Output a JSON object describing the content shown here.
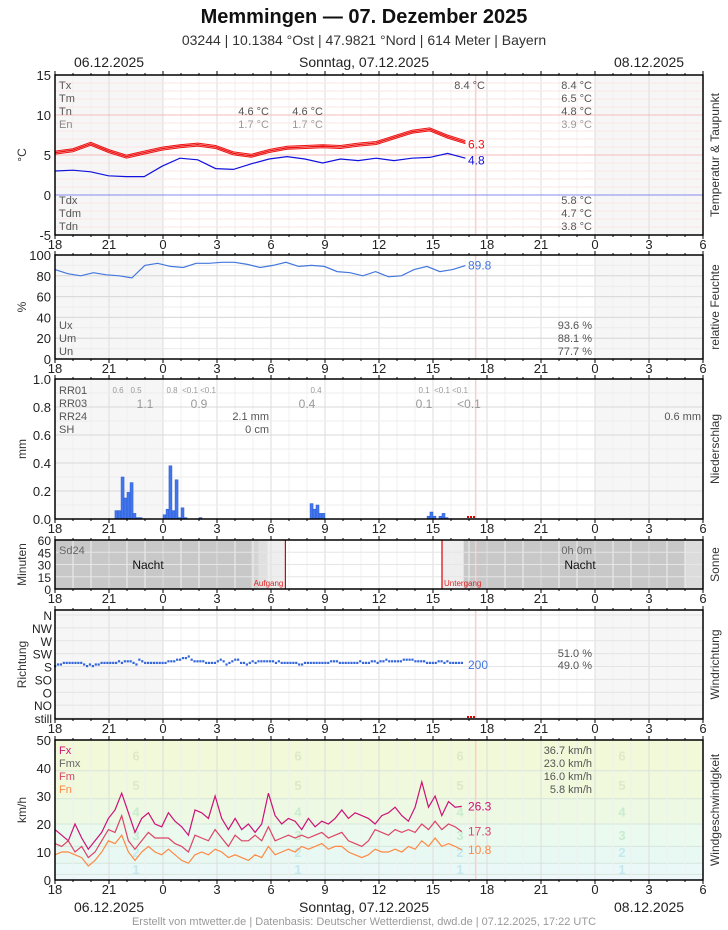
{
  "header": {
    "title": "Memmingen  —  07. Dezember 2025",
    "subtitle": "03244  |  10.1384 °Ost  |  47.9821 °Nord  |  614 Meter  |  Bayern",
    "date_left": "06.12.2025",
    "date_center": "Sonntag, 07.12.2025",
    "date_right": "08.12.2025"
  },
  "footer": {
    "text": "Erstellt von mtwetter.de | Datenbasis: Deutscher Wetterdienst, dwd.de | 07.12.2025, 17:22 UTC"
  },
  "time_axis": {
    "ticks": [
      "18",
      "21",
      "0",
      "3",
      "6",
      "9",
      "12",
      "15",
      "18",
      "21",
      "0",
      "3",
      "6"
    ]
  },
  "colors": {
    "temp": "#ee1111",
    "dew": "#1111dd",
    "humidity": "#4477dd",
    "precip": "#4477ee",
    "wind_fx": "#cc1177",
    "wind_fm": "#dd4466",
    "wind_fn": "#ff8844",
    "sun_marker": "#dd0000",
    "now_marker": "#ffcccc"
  },
  "chart_data": [
    {
      "id": "temperature",
      "type": "line",
      "title": "Temperatur & Taupunkt",
      "ylabel": "°C",
      "ylim": [
        -5,
        15
      ],
      "yticks": [
        "15",
        "10",
        "5",
        "0",
        "-5"
      ],
      "x_hours": [
        0,
        1,
        2,
        3,
        4,
        5,
        6,
        7,
        8,
        9,
        10,
        11,
        12,
        13,
        14,
        15,
        16,
        17,
        18,
        19,
        20,
        21,
        22,
        23
      ],
      "x_note": "hours since 18:00 on 06.12.2025",
      "series": [
        {
          "name": "Temperatur",
          "values": [
            5.3,
            5.6,
            6.4,
            5.5,
            4.8,
            5.3,
            5.8,
            6.1,
            6.3,
            6.0,
            5.2,
            4.9,
            5.5,
            5.9,
            6.0,
            6.1,
            6.0,
            6.3,
            6.5,
            7.2,
            7.9,
            8.2,
            7.3,
            6.6
          ],
          "last": 6.3
        },
        {
          "name": "Taupunkt",
          "values": [
            3.0,
            3.1,
            2.9,
            2.4,
            2.3,
            2.3,
            3.6,
            4.6,
            4.4,
            3.3,
            3.2,
            3.9,
            4.5,
            4.8,
            4.5,
            4.0,
            4.5,
            4.3,
            4.6,
            4.3,
            4.6,
            4.7,
            5.2,
            4.6
          ],
          "last": 4.8
        }
      ],
      "labels_left": [
        "Tx",
        "Tm",
        "Tn",
        "En"
      ],
      "labels_left_bottom": [
        "Tdx",
        "Tdm",
        "Tdn"
      ],
      "day_values": {
        "Tn_1": "4.6 °C",
        "En_1": "1.7 °C",
        "Tn_2": "4.6 °C",
        "En_2": "1.7 °C",
        "Tx_now": "8.4 °C"
      },
      "summary": {
        "Tx": "8.4 °C",
        "Tm": "6.5 °C",
        "Tn": "4.8 °C",
        "En": "3.9 °C",
        "Tdx": "5.8 °C",
        "Tdm": "4.7 °C",
        "Tdn": "3.8 °C"
      }
    },
    {
      "id": "humidity",
      "type": "line",
      "title": "relative Feuchte",
      "ylabel": "%",
      "ylim": [
        0,
        100
      ],
      "yticks": [
        "100",
        "80",
        "60",
        "40",
        "20",
        "0"
      ],
      "series": [
        {
          "name": "relative Feuchte",
          "values": [
            86,
            82,
            80,
            83,
            81,
            80,
            78,
            90,
            92,
            89,
            88,
            92,
            92,
            93,
            93,
            91,
            88,
            90,
            93,
            89,
            90,
            89,
            84,
            83,
            80,
            84,
            79,
            80,
            86,
            89,
            84,
            86,
            89.8
          ],
          "last": 89.8
        }
      ],
      "labels_left": [
        "Ux",
        "Um",
        "Un"
      ],
      "summary": {
        "Ux": "93.6 %",
        "Um": "88.1 %",
        "Un": "77.7 %"
      }
    },
    {
      "id": "precipitation",
      "type": "bar",
      "title": "Niederschlag",
      "ylabel": "mm",
      "ylim": [
        0,
        1.0
      ],
      "yticks": [
        "1.0",
        "0.8",
        "0.6",
        "0.4",
        "0.2",
        "0.0"
      ],
      "bars_10min": [
        {
          "t": 3.33,
          "v": 0.06
        },
        {
          "t": 3.5,
          "v": 0.06
        },
        {
          "t": 3.67,
          "v": 0.3
        },
        {
          "t": 3.83,
          "v": 0.15
        },
        {
          "t": 4.0,
          "v": 0.19
        },
        {
          "t": 4.17,
          "v": 0.26
        },
        {
          "t": 4.33,
          "v": 0.04
        },
        {
          "t": 4.5,
          "v": 0.01
        },
        {
          "t": 4.67,
          "v": 0.01
        },
        {
          "t": 6.0,
          "v": 0.03
        },
        {
          "t": 6.17,
          "v": 0.07
        },
        {
          "t": 6.33,
          "v": 0.38
        },
        {
          "t": 6.5,
          "v": 0.06
        },
        {
          "t": 6.67,
          "v": 0.28
        },
        {
          "t": 6.83,
          "v": 0.01
        },
        {
          "t": 7.0,
          "v": 0.08
        },
        {
          "t": 7.17,
          "v": 0.01
        },
        {
          "t": 8.0,
          "v": 0.01
        },
        {
          "t": 14.17,
          "v": 0.11
        },
        {
          "t": 14.33,
          "v": 0.07
        },
        {
          "t": 14.5,
          "v": 0.1
        },
        {
          "t": 14.67,
          "v": 0.04
        },
        {
          "t": 14.83,
          "v": 0.04
        },
        {
          "t": 20.67,
          "v": 0.02
        },
        {
          "t": 20.83,
          "v": 0.05
        },
        {
          "t": 21.0,
          "v": 0.02
        },
        {
          "t": 21.33,
          "v": 0.02
        },
        {
          "t": 21.5,
          "v": 0.04
        },
        {
          "t": 21.67,
          "v": 0.01
        }
      ],
      "labels_left": [
        "RR01",
        "RR03",
        "RR24",
        "SH"
      ],
      "rr01_labels": [
        {
          "t": 3.5,
          "text": "0.6"
        },
        {
          "t": 4.5,
          "text": "0.5"
        },
        {
          "t": 6.5,
          "text": "0.8"
        },
        {
          "t": 7.5,
          "text": "<0.1"
        },
        {
          "t": 8.5,
          "text": "<0.1"
        },
        {
          "t": 14.5,
          "text": "0.4"
        },
        {
          "t": 20.5,
          "text": "0.1"
        },
        {
          "t": 21.5,
          "text": "<0.1"
        },
        {
          "t": 22.5,
          "text": "<0.1"
        }
      ],
      "rr03_labels": [
        {
          "t": 5.0,
          "text": "1.1"
        },
        {
          "t": 8.0,
          "text": "0.9"
        },
        {
          "t": 14.0,
          "text": "0.4"
        },
        {
          "t": 20.5,
          "text": "0.1"
        },
        {
          "t": 23.0,
          "text": "<0.1"
        }
      ],
      "rr24": "2.1 mm",
      "sh": "0 cm",
      "rr24_summary": "0.6 mm"
    },
    {
      "id": "sunshine",
      "type": "area",
      "title": "Sonne",
      "ylabel": "Minuten",
      "ylim": [
        0,
        60
      ],
      "yticks": [
        "60",
        "45",
        "30",
        "15",
        "0"
      ],
      "label_left": "Sd24",
      "summary": "0h 0m",
      "night_label": "Nacht",
      "sunrise_label": "Aufgang",
      "sunset_label": "Untergang",
      "sunrise_hour": 12.8,
      "sunset_hour": 21.5
    },
    {
      "id": "wind_direction",
      "type": "scatter",
      "title": "Windrichtung",
      "ylabel": "Richtung",
      "yticks": [
        "N",
        "NW",
        "W",
        "SW",
        "S",
        "SO",
        "O",
        "NO",
        "still"
      ],
      "last": "200",
      "summary": {
        "line1": "51.0 %",
        "line2": "49.0 %"
      }
    },
    {
      "id": "wind_speed",
      "type": "line",
      "title": "Windgeschwindigkeit",
      "ylabel": "km/h",
      "ylim": [
        0,
        50
      ],
      "yticks": [
        "50",
        "40",
        "30",
        "20",
        "10",
        "0"
      ],
      "beaufort_labels": [
        "6",
        "5",
        "4",
        "3",
        "2",
        "1"
      ],
      "series": [
        {
          "name": "Fx",
          "values": [
            18,
            16,
            14,
            20,
            15,
            11,
            14,
            17,
            22,
            25,
            31,
            24,
            17,
            22,
            24,
            20,
            19,
            24,
            21,
            19,
            16,
            25,
            24,
            22,
            30,
            22,
            18,
            22,
            18,
            20,
            17,
            20,
            31,
            23,
            20,
            22,
            21,
            18,
            22,
            19,
            21,
            20,
            22,
            25,
            22,
            24,
            23,
            22,
            20,
            23,
            24,
            26,
            23,
            21,
            26,
            35,
            26,
            30,
            23,
            28,
            26,
            26.3
          ],
          "last": 26.3
        },
        {
          "name": "Fm",
          "values": [
            13,
            12,
            14,
            10,
            12,
            8,
            10,
            14,
            18,
            17,
            23,
            14,
            11,
            14,
            17,
            15,
            15,
            15,
            13,
            12,
            10,
            16,
            15,
            14,
            18,
            15,
            12,
            16,
            14,
            14,
            16,
            14,
            19,
            14,
            15,
            16,
            15,
            16,
            15,
            16,
            17,
            15,
            16,
            17,
            14,
            13,
            12,
            14,
            18,
            17,
            16,
            18,
            17,
            18,
            17,
            20,
            18,
            21,
            18,
            20,
            19,
            17.3
          ],
          "last": 17.3
        },
        {
          "name": "Fn",
          "values": [
            9,
            10,
            10,
            9,
            8,
            5,
            7,
            10,
            14,
            13,
            16,
            10,
            7,
            10,
            12,
            10,
            9,
            11,
            9,
            7,
            6,
            9,
            10,
            9,
            11,
            10,
            8,
            9,
            8,
            7,
            9,
            8,
            12,
            9,
            10,
            11,
            10,
            12,
            11,
            12,
            13,
            11,
            12,
            12,
            10,
            9,
            8,
            9,
            11,
            10,
            10,
            11,
            10,
            12,
            11,
            14,
            12,
            15,
            12,
            13,
            12,
            10.8
          ],
          "last": 10.8
        }
      ],
      "labels_left": [
        "Fx",
        "Fmx",
        "Fm",
        "Fn"
      ],
      "summary": {
        "Fx": "36.7 km/h",
        "Fmx": "23.0 km/h",
        "Fm": "16.0 km/h",
        "Fn": "5.8 km/h"
      }
    }
  ]
}
